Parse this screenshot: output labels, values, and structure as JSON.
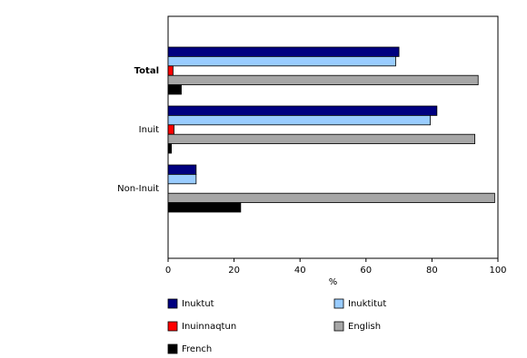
{
  "chart_data": {
    "type": "hbar",
    "categories": [
      "Total",
      "Inuit",
      "Non-Inuit"
    ],
    "series": [
      {
        "name": "Inuktut",
        "color": "#000080",
        "values": [
          70,
          81.5,
          8.5
        ]
      },
      {
        "name": "Inuktitut",
        "color": "#99ccff",
        "values": [
          69,
          79.5,
          8.5
        ]
      },
      {
        "name": "Inuinnaqtun",
        "color": "#ff0000",
        "values": [
          1.5,
          1.8,
          0
        ]
      },
      {
        "name": "English",
        "color": "#a6a6a6",
        "values": [
          94,
          93,
          99
        ]
      },
      {
        "name": "French",
        "color": "#000000",
        "values": [
          4,
          1,
          22
        ]
      }
    ],
    "xlabel": "%",
    "xlim": [
      0,
      100
    ],
    "xticks": [
      0,
      20,
      40,
      60,
      80,
      100
    ]
  }
}
